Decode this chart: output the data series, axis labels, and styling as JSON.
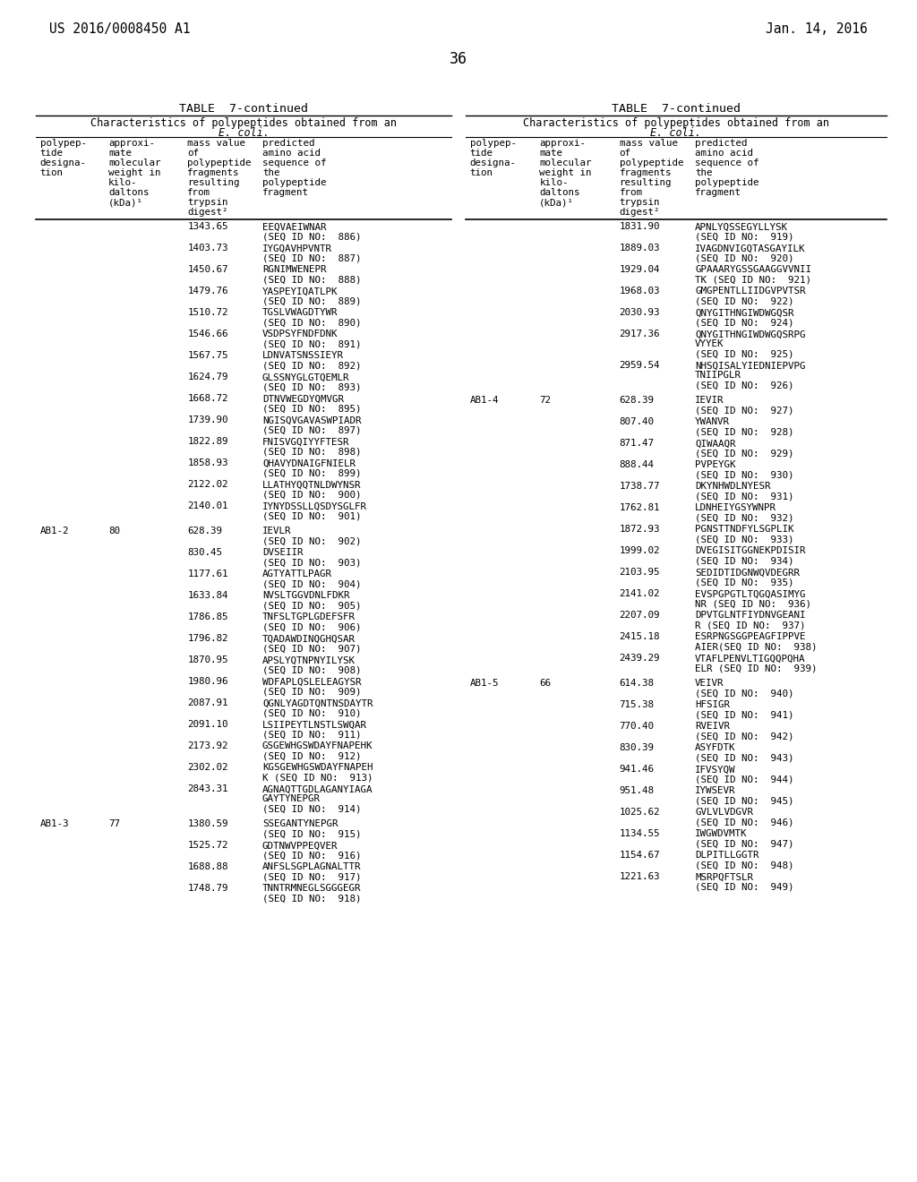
{
  "patent_number": "US 2016/0008450 A1",
  "date": "Jan. 14, 2016",
  "page_number": "36",
  "table_title": "TABLE  7-continued",
  "table_subtitle": "Characteristics of polypeptides obtained from an",
  "table_subtitle2": "E. coli.",
  "left_table_rows": [
    [
      "",
      "",
      "1343.65",
      "EEQVAEIWNAR\n(SEQ ID NO:  886)"
    ],
    [
      "",
      "",
      "1403.73",
      "IYGQAVHPVNTR\n(SEQ ID NO:  887)"
    ],
    [
      "",
      "",
      "1450.67",
      "RGNIMWENEPR\n(SEQ ID NO:  888)"
    ],
    [
      "",
      "",
      "1479.76",
      "YASPEYIQATLPK\n(SEQ ID NO:  889)"
    ],
    [
      "",
      "",
      "1510.72",
      "TGSLVWAGDTYWR\n(SEQ ID NO:  890)"
    ],
    [
      "",
      "",
      "1546.66",
      "VSDPSYFNDFDNK\n(SEQ ID NO:  891)"
    ],
    [
      "",
      "",
      "1567.75",
      "LDNVATSNSSIEYR\n(SEQ ID NO:  892)"
    ],
    [
      "",
      "",
      "1624.79",
      "GLSSNYGLGTQEMLR\n(SEQ ID NO:  893)"
    ],
    [
      "",
      "",
      "1668.72",
      "DTNVWEGDYQMVGR\n(SEQ ID NO:  895)"
    ],
    [
      "",
      "",
      "1739.90",
      "NGISQVGAVASWPIADR\n(SEQ ID NO:  897)"
    ],
    [
      "",
      "",
      "1822.89",
      "FNISVGQIYYFTESR\n(SEQ ID NO:  898)"
    ],
    [
      "",
      "",
      "1858.93",
      "QHAVYDNAIGFNIELR\n(SEQ ID NO:  899)"
    ],
    [
      "",
      "",
      "2122.02",
      "LLATHYQQTNLDWYNSR\n(SEQ ID NO:  900)"
    ],
    [
      "",
      "",
      "2140.01",
      "IYNYDSSLLQSDYSGLFR\n(SEQ ID NO:  901)"
    ],
    [
      "AB1-2",
      "80",
      "628.39",
      "IEVLR\n(SEQ ID NO:  902)"
    ],
    [
      "",
      "",
      "830.45",
      "DVSEIIR\n(SEQ ID NO:  903)"
    ],
    [
      "",
      "",
      "1177.61",
      "AGTYATTLPAGR\n(SEQ ID NO:  904)"
    ],
    [
      "",
      "",
      "1633.84",
      "NVSLTGGVDNLFDKR\n(SEQ ID NO:  905)"
    ],
    [
      "",
      "",
      "1786.85",
      "TNFSLTGPLGDEFSFR\n(SEQ ID NO:  906)"
    ],
    [
      "",
      "",
      "1796.82",
      "TQADAWDINQGHQSAR\n(SEQ ID NO:  907)"
    ],
    [
      "",
      "",
      "1870.95",
      "APSLYQTNPNYILYSK\n(SEQ ID NO:  908)"
    ],
    [
      "",
      "",
      "1980.96",
      "WDFAPLQSLELEAGYSR\n(SEQ ID NO:  909)"
    ],
    [
      "",
      "",
      "2087.91",
      "QGNLYAGDTQNTNSDAYTR\n(SEQ ID NO:  910)"
    ],
    [
      "",
      "",
      "2091.10",
      "LSIIPEYTLNSTLSWQAR\n(SEQ ID NO:  911)"
    ],
    [
      "",
      "",
      "2173.92",
      "GSGEWHGSWDAYFNAPEHK\n(SEQ ID NO:  912)"
    ],
    [
      "",
      "",
      "2302.02",
      "KGSGEWHGSWDAYFNAPEH\nK (SEQ ID NO:  913)"
    ],
    [
      "",
      "",
      "2843.31",
      "AGNAQTTGDLAGANYIAGA\nGAYTYNEPGR\n(SEQ ID NO:  914)"
    ],
    [
      "AB1-3",
      "77",
      "1380.59",
      "SSEGANTYNEPGR\n(SEQ ID NO:  915)"
    ],
    [
      "",
      "",
      "1525.72",
      "GDTNWVPPEQVER\n(SEQ ID NO:  916)"
    ],
    [
      "",
      "",
      "1688.88",
      "ANFSLSGPLAGNALTTR\n(SEQ ID NO:  917)"
    ],
    [
      "",
      "",
      "1748.79",
      "TNNTRMNEGLSGGGEGR\n(SEQ ID NO:  918)"
    ]
  ],
  "right_table_rows": [
    [
      "",
      "",
      "1831.90",
      "APNLYQSSEGYLLYSK\n(SEQ ID NO:  919)"
    ],
    [
      "",
      "",
      "1889.03",
      "IVAGDNVIGQTASGAYILK\n(SEQ ID NO:  920)"
    ],
    [
      "",
      "",
      "1929.04",
      "GPAAARYGSSGAAGGVVNII\nTK (SEQ ID NO:  921)"
    ],
    [
      "",
      "",
      "1968.03",
      "GMGPENTLLIIDGVPVTSR\n(SEQ ID NO:  922)"
    ],
    [
      "",
      "",
      "2030.93",
      "QNYGITHNGIWDWGQSR\n(SEQ ID NO:  924)"
    ],
    [
      "",
      "",
      "2917.36",
      "QNYGITHNGIWDWGQSRPG\nVYYEK\n(SEQ ID NO:  925)"
    ],
    [
      "",
      "",
      "2959.54",
      "NHSQISALYIEDNIEPVPG\nTNIIPGLR\n(SEQ ID NO:  926)"
    ],
    [
      "AB1-4",
      "72",
      "628.39",
      "IEVIR\n(SEQ ID NO:  927)"
    ],
    [
      "",
      "",
      "807.40",
      "YWANVR\n(SEQ ID NO:  928)"
    ],
    [
      "",
      "",
      "871.47",
      "QIWAAQR\n(SEQ ID NO:  929)"
    ],
    [
      "",
      "",
      "888.44",
      "PVPEYGK\n(SEQ ID NO:  930)"
    ],
    [
      "",
      "",
      "1738.77",
      "DKYNHWDLNYESR\n(SEQ ID NO:  931)"
    ],
    [
      "",
      "",
      "1762.81",
      "LDNHEIYGSYWNPR\n(SEQ ID NO:  932)"
    ],
    [
      "",
      "",
      "1872.93",
      "PGNSTTNDFYLSGPLIK\n(SEQ ID NO:  933)"
    ],
    [
      "",
      "",
      "1999.02",
      "DVEGISITGGNEKPDISIR\n(SEQ ID NO:  934)"
    ],
    [
      "",
      "",
      "2103.95",
      "SEDIDTIDGNWQVDEGRR\n(SEQ ID NO:  935)"
    ],
    [
      "",
      "",
      "2141.02",
      "EVSPGPGTLTQGQASIMYG\nNR (SEQ ID NO:  936)"
    ],
    [
      "",
      "",
      "2207.09",
      "DPVTGLNTFIYDNVGEANI\nR (SEQ ID NO:  937)"
    ],
    [
      "",
      "",
      "2415.18",
      "ESRPNGSGGPEAGFIPPVE\nAIER(SEQ ID NO:  938)"
    ],
    [
      "",
      "",
      "2439.29",
      "VTAFLPENVLTIGQQPQHA\nELR (SEQ ID NO:  939)"
    ],
    [
      "AB1-5",
      "66",
      "614.38",
      "VEIVR\n(SEQ ID NO:  940)"
    ],
    [
      "",
      "",
      "715.38",
      "HFSIGR\n(SEQ ID NO:  941)"
    ],
    [
      "",
      "",
      "770.40",
      "RVEIVR\n(SEQ ID NO:  942)"
    ],
    [
      "",
      "",
      "830.39",
      "ASYFDTK\n(SEQ ID NO:  943)"
    ],
    [
      "",
      "",
      "941.46",
      "IFVSYQW\n(SEQ ID NO:  944)"
    ],
    [
      "",
      "",
      "951.48",
      "IYWSEVR\n(SEQ ID NO:  945)"
    ],
    [
      "",
      "",
      "1025.62",
      "GVLVLVDGVR\n(SEQ ID NO:  946)"
    ],
    [
      "",
      "",
      "1134.55",
      "IWGWDVMTK\n(SEQ ID NO:  947)"
    ],
    [
      "",
      "",
      "1154.67",
      "DLPITLLGGTR\n(SEQ ID NO:  948)"
    ],
    [
      "",
      "",
      "1221.63",
      "MSRPQFTSLR\n(SEQ ID NO:  949)"
    ]
  ]
}
